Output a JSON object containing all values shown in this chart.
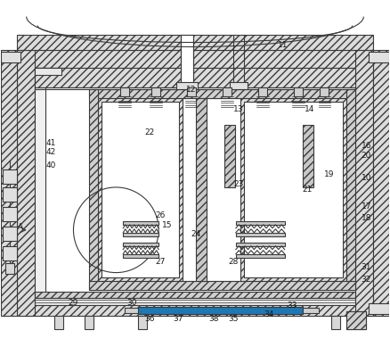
{
  "bg_color": "#ffffff",
  "lc": "#3a3a3a",
  "fc_hatch": "#e8e8e8",
  "fc_white": "#ffffff",
  "figsize": [
    4.38,
    3.89
  ],
  "dpi": 100,
  "labels": [
    [
      "11",
      318,
      50
    ],
    [
      "12",
      215,
      100
    ],
    [
      "13",
      268,
      122
    ],
    [
      "14",
      348,
      122
    ],
    [
      "22",
      168,
      148
    ],
    [
      "41",
      57,
      160
    ],
    [
      "42",
      57,
      170
    ],
    [
      "40",
      57,
      185
    ],
    [
      "16",
      412,
      163
    ],
    [
      "20",
      412,
      174
    ],
    [
      "19",
      370,
      196
    ],
    [
      "10",
      412,
      200
    ],
    [
      "23",
      268,
      207
    ],
    [
      "21",
      345,
      213
    ],
    [
      "26",
      180,
      242
    ],
    [
      "15",
      188,
      253
    ],
    [
      "A",
      22,
      255
    ],
    [
      "17",
      412,
      232
    ],
    [
      "18",
      412,
      245
    ],
    [
      "24",
      220,
      263
    ],
    [
      "27",
      180,
      294
    ],
    [
      "28",
      262,
      294
    ],
    [
      "31",
      412,
      300
    ],
    [
      "32",
      412,
      314
    ],
    [
      "29",
      82,
      340
    ],
    [
      "30",
      148,
      340
    ],
    [
      "36",
      168,
      358
    ],
    [
      "37",
      200,
      358
    ],
    [
      "38",
      240,
      358
    ],
    [
      "35",
      262,
      358
    ],
    [
      "34",
      302,
      353
    ],
    [
      "33",
      328,
      343
    ]
  ]
}
